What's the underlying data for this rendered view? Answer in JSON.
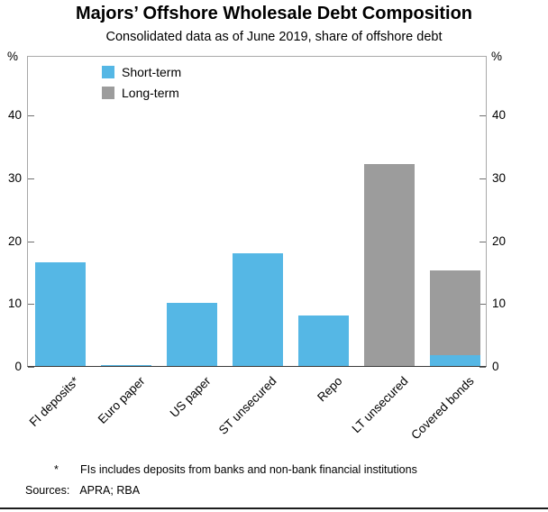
{
  "title": "Majors’ Offshore Wholesale Debt Composition",
  "subtitle": "Consolidated data as of June 2019, share of offshore debt",
  "axis": {
    "unit_left": "%",
    "unit_right": "%"
  },
  "legend": [
    {
      "label": "Short-term",
      "color": "#55b7e5"
    },
    {
      "label": "Long-term",
      "color": "#9c9c9c"
    }
  ],
  "chart_data": {
    "type": "bar",
    "stacked": true,
    "title": "Majors’ Offshore Wholesale Debt Composition",
    "subtitle": "Consolidated data as of June 2019, share of offshore debt",
    "categories": [
      "FI deposits*",
      "Euro paper",
      "US paper",
      "ST unsecured",
      "Repo",
      "LT unsecured",
      "Covered bonds"
    ],
    "series": [
      {
        "name": "Short-term",
        "color": "#55b7e5",
        "values": [
          16.5,
          0.2,
          10,
          18,
          8,
          0,
          1.7
        ]
      },
      {
        "name": "Long-term",
        "color": "#9c9c9c",
        "values": [
          0,
          0,
          0,
          0,
          0,
          32.2,
          13.5
        ]
      }
    ],
    "xlabel": "",
    "ylabel": "%",
    "ylim": [
      0,
      49.5
    ],
    "yticks": [
      0,
      10,
      20,
      30,
      40
    ],
    "grid": false,
    "legend_position": "top-left"
  },
  "footnote": {
    "marker": "*",
    "text": "FIs includes deposits from banks and non-bank financial institutions"
  },
  "sources": {
    "label": "Sources:",
    "text": "APRA; RBA"
  }
}
